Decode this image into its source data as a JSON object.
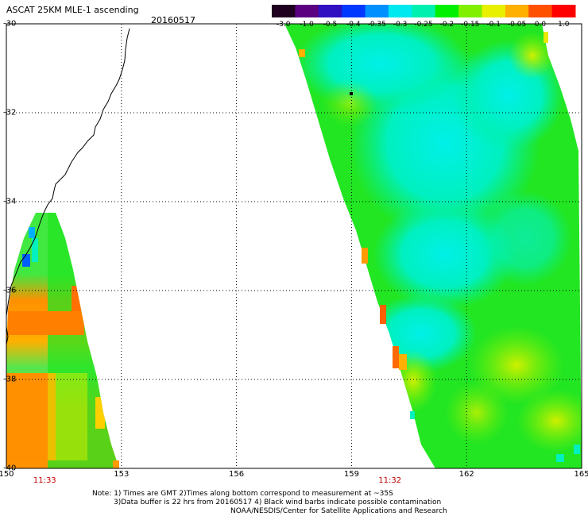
{
  "header": {
    "title": "ASCAT 25KM MLE-1 ascending",
    "date": "20160517"
  },
  "colorbar": {
    "labels": [
      "-3.0",
      "-1.0",
      "-0.5",
      "-0.4",
      "-0.35",
      "-0.3",
      "-0.25",
      "-0.2",
      "-0.15",
      "-0.1",
      "-0.05",
      "0.0",
      "1.0"
    ],
    "colors": [
      "#200020",
      "#5a0080",
      "#3010c0",
      "#0038ff",
      "#0090ff",
      "#00e8f0",
      "#00f0b0",
      "#00f000",
      "#80f000",
      "#e8f000",
      "#ffb000",
      "#ff5000",
      "#ff0000"
    ]
  },
  "axes": {
    "lat_labels": [
      "-30",
      "-32",
      "-34",
      "-36",
      "-38",
      "-40"
    ],
    "lon_labels": [
      "150",
      "153",
      "156",
      "159",
      "162",
      "165"
    ],
    "lat_values": [
      -30,
      -32,
      -34,
      -36,
      -38,
      -40
    ],
    "lon_values": [
      150,
      153,
      156,
      159,
      162,
      165
    ]
  },
  "pass_times": [
    {
      "label": "11:33",
      "lon": 151
    },
    {
      "label": "11:32",
      "lon": 160
    }
  ],
  "notes": [
    "Note: 1) Times are GMT 2)Times along bottom correspond to measurement at ~35S",
    "3)Data buffer is 22 hrs from 20160517 4) Black wind barbs indicate possible contamination",
    "NOAA/NESDIS/Center for Satellite Applications and Research"
  ],
  "colors": {
    "swath_green": "#22e622",
    "swath_cyan": "#00f0c8",
    "swath_yellow": "#d8f000",
    "swath_orange": "#ff9000",
    "coast": "#000000",
    "time_label": "#c00000"
  }
}
